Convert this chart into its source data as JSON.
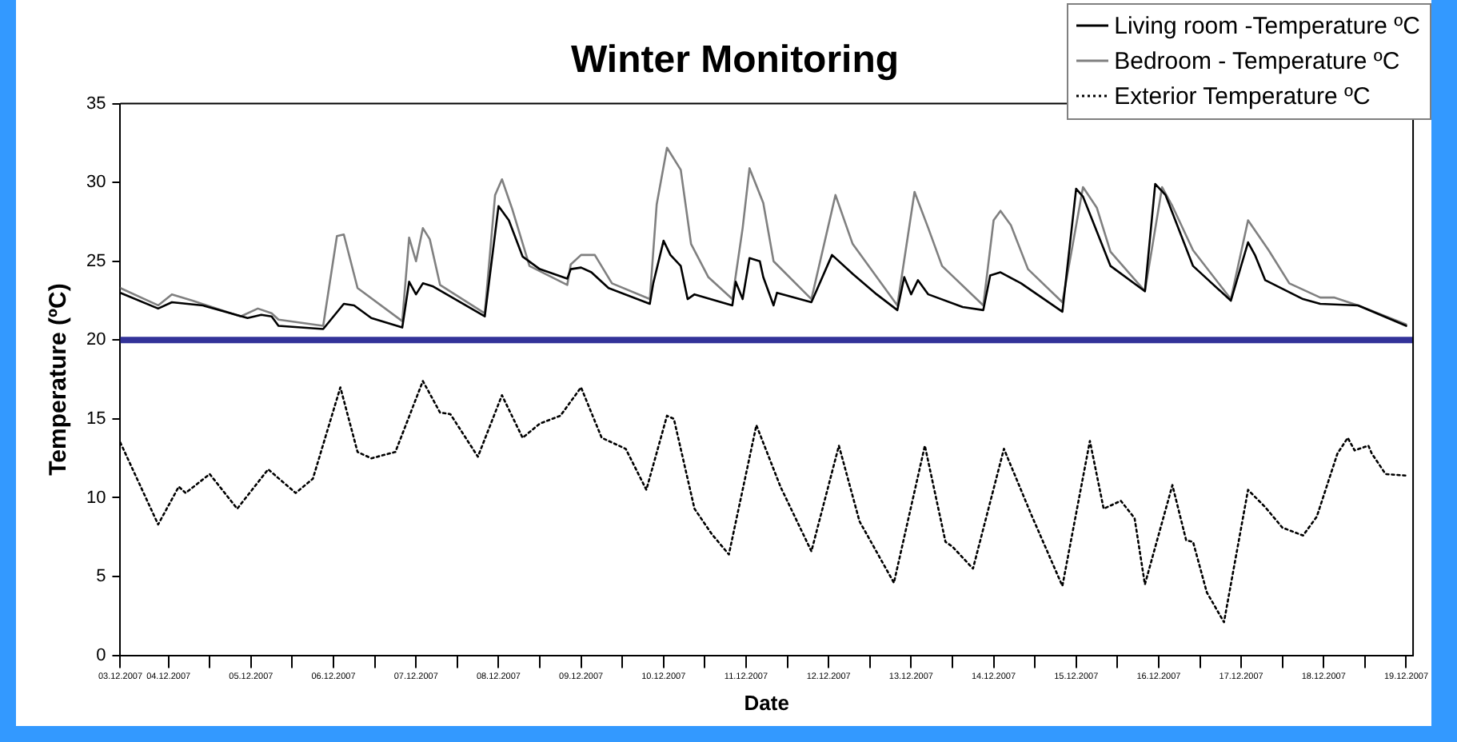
{
  "chart_data": {
    "type": "line",
    "title": "Winter Monitoring",
    "xlabel": "Date",
    "ylabel": "Temperature (ºC)",
    "xlim": [
      "2007-12-03T22:00",
      "2007-12-19T14:00"
    ],
    "xticks": [
      {
        "value": "2007-12-03T22:00",
        "label": "03.12.2007"
      },
      {
        "value": "2007-12-04T12:00",
        "label": "04.12.2007"
      },
      {
        "value": "2007-12-05T00:00",
        "label": null
      },
      {
        "value": "2007-12-05T12:00",
        "label": "05.12.2007"
      },
      {
        "value": "2007-12-06T00:00",
        "label": null
      },
      {
        "value": "2007-12-06T12:00",
        "label": "06.12.2007"
      },
      {
        "value": "2007-12-07T00:00",
        "label": null
      },
      {
        "value": "2007-12-07T12:00",
        "label": "07.12.2007"
      },
      {
        "value": "2007-12-08T00:00",
        "label": null
      },
      {
        "value": "2007-12-08T12:00",
        "label": "08.12.2007"
      },
      {
        "value": "2007-12-09T00:00",
        "label": null
      },
      {
        "value": "2007-12-09T12:00",
        "label": "09.12.2007"
      },
      {
        "value": "2007-12-10T00:00",
        "label": null
      },
      {
        "value": "2007-12-10T12:00",
        "label": "10.12.2007"
      },
      {
        "value": "2007-12-11T00:00",
        "label": null
      },
      {
        "value": "2007-12-11T12:00",
        "label": "11.12.2007"
      },
      {
        "value": "2007-12-12T00:00",
        "label": null
      },
      {
        "value": "2007-12-12T12:00",
        "label": "12.12.2007"
      },
      {
        "value": "2007-12-13T00:00",
        "label": null
      },
      {
        "value": "2007-12-13T12:00",
        "label": "13.12.2007"
      },
      {
        "value": "2007-12-14T00:00",
        "label": null
      },
      {
        "value": "2007-12-14T12:00",
        "label": "14.12.2007"
      },
      {
        "value": "2007-12-15T00:00",
        "label": null
      },
      {
        "value": "2007-12-15T12:00",
        "label": "15.12.2007"
      },
      {
        "value": "2007-12-16T00:00",
        "label": null
      },
      {
        "value": "2007-12-16T12:00",
        "label": "16.12.2007"
      },
      {
        "value": "2007-12-17T00:00",
        "label": null
      },
      {
        "value": "2007-12-17T12:00",
        "label": "17.12.2007"
      },
      {
        "value": "2007-12-18T00:00",
        "label": null
      },
      {
        "value": "2007-12-18T12:00",
        "label": "18.12.2007"
      },
      {
        "value": "2007-12-19T00:00",
        "label": null
      },
      {
        "value": "2007-12-19T12:00",
        "label": "19.12.2007"
      }
    ],
    "ylim": [
      0,
      35
    ],
    "yticks": [
      0,
      5,
      10,
      15,
      20,
      25,
      30,
      35
    ],
    "grid": false,
    "legend": "top right",
    "marker": "none",
    "ref_lines": [
      {
        "axis": "y",
        "value": 20,
        "color": "#333399"
      }
    ],
    "series": [
      {
        "name": "Living room -Temperature ºC",
        "color": "#000000",
        "line_style": "solid",
        "x": [
          "2007-12-03T22:00",
          "2007-12-04T09:00",
          "2007-12-04T13:00",
          "2007-12-04T22:00",
          "2007-12-05T11:00",
          "2007-12-05T15:00",
          "2007-12-05T18:00",
          "2007-12-05T20:00",
          "2007-12-06T09:00",
          "2007-12-06T15:00",
          "2007-12-06T18:00",
          "2007-12-06T23:00",
          "2007-12-07T08:00",
          "2007-12-07T10:00",
          "2007-12-07T12:00",
          "2007-12-07T14:00",
          "2007-12-07T17:00",
          "2007-12-08T08:00",
          "2007-12-08T12:00",
          "2007-12-08T15:00",
          "2007-12-08T19:00",
          "2007-12-09T00:00",
          "2007-12-09T08:00",
          "2007-12-09T09:00",
          "2007-12-09T12:00",
          "2007-12-09T15:00",
          "2007-12-09T20:00",
          "2007-12-10T08:00",
          "2007-12-10T09:00",
          "2007-12-10T12:00",
          "2007-12-10T14:00",
          "2007-12-10T17:00",
          "2007-12-10T19:00",
          "2007-12-10T21:00",
          "2007-12-11T08:00",
          "2007-12-11T09:00",
          "2007-12-11T11:00",
          "2007-12-11T13:00",
          "2007-12-11T16:00",
          "2007-12-11T17:00",
          "2007-12-11T20:00",
          "2007-12-11T21:00",
          "2007-12-12T07:00",
          "2007-12-12T13:00",
          "2007-12-12T19:00",
          "2007-12-13T02:00",
          "2007-12-13T08:00",
          "2007-12-13T10:00",
          "2007-12-13T12:00",
          "2007-12-13T14:00",
          "2007-12-13T17:00",
          "2007-12-14T03:00",
          "2007-12-14T09:00",
          "2007-12-14T11:00",
          "2007-12-14T14:00",
          "2007-12-14T20:00",
          "2007-12-15T08:00",
          "2007-12-15T12:00",
          "2007-12-15T14:00",
          "2007-12-15T22:00",
          "2007-12-16T08:00",
          "2007-12-16T11:00",
          "2007-12-16T14:00",
          "2007-12-16T22:00",
          "2007-12-17T09:00",
          "2007-12-17T14:00",
          "2007-12-17T16:00",
          "2007-12-17T19:00",
          "2007-12-18T06:00",
          "2007-12-18T11:00",
          "2007-12-18T22:00",
          "2007-12-19T12:00"
        ],
        "values": [
          23.0,
          22.0,
          22.4,
          22.2,
          21.4,
          21.6,
          21.5,
          20.9,
          20.7,
          22.3,
          22.2,
          21.4,
          20.8,
          23.7,
          22.9,
          23.6,
          23.4,
          21.5,
          28.5,
          27.6,
          25.3,
          24.5,
          23.9,
          24.5,
          24.6,
          24.3,
          23.3,
          22.3,
          23.6,
          26.3,
          25.4,
          24.7,
          22.6,
          22.9,
          22.2,
          23.7,
          22.6,
          25.2,
          25.0,
          24.0,
          22.2,
          23.0,
          22.4,
          25.4,
          24.2,
          22.9,
          21.9,
          24.0,
          22.9,
          23.8,
          22.9,
          22.1,
          21.9,
          24.1,
          24.3,
          23.6,
          21.8,
          29.6,
          29.1,
          24.7,
          23.1,
          29.9,
          29.2,
          24.7,
          22.5,
          26.2,
          25.4,
          23.8,
          22.6,
          22.3,
          22.2,
          20.9
        ]
      },
      {
        "name": "Bedroom - Temperature ºC",
        "color": "#808080",
        "line_style": "solid",
        "x": [
          "2007-12-03T22:00",
          "2007-12-04T09:00",
          "2007-12-04T13:00",
          "2007-12-04T19:00",
          "2007-12-05T09:00",
          "2007-12-05T14:00",
          "2007-12-05T18:00",
          "2007-12-05T20:00",
          "2007-12-06T09:00",
          "2007-12-06T13:00",
          "2007-12-06T15:00",
          "2007-12-06T19:00",
          "2007-12-07T08:00",
          "2007-12-07T10:00",
          "2007-12-07T12:00",
          "2007-12-07T14:00",
          "2007-12-07T16:00",
          "2007-12-07T19:00",
          "2007-12-08T08:00",
          "2007-12-08T11:00",
          "2007-12-08T13:00",
          "2007-12-08T16:00",
          "2007-12-08T21:00",
          "2007-12-09T08:00",
          "2007-12-09T09:00",
          "2007-12-09T12:00",
          "2007-12-09T16:00",
          "2007-12-09T21:00",
          "2007-12-10T08:00",
          "2007-12-10T10:00",
          "2007-12-10T13:00",
          "2007-12-10T17:00",
          "2007-12-10T20:00",
          "2007-12-11T01:00",
          "2007-12-11T08:00",
          "2007-12-11T11:00",
          "2007-12-11T13:00",
          "2007-12-11T17:00",
          "2007-12-11T20:00",
          "2007-12-12T07:00",
          "2007-12-12T14:00",
          "2007-12-12T19:00",
          "2007-12-13T08:00",
          "2007-12-13T13:00",
          "2007-12-13T17:00",
          "2007-12-13T21:00",
          "2007-12-14T09:00",
          "2007-12-14T12:00",
          "2007-12-14T14:00",
          "2007-12-14T17:00",
          "2007-12-14T22:00",
          "2007-12-15T08:00",
          "2007-12-15T14:00",
          "2007-12-15T18:00",
          "2007-12-15T22:00",
          "2007-12-16T08:00",
          "2007-12-16T13:00",
          "2007-12-16T16:00",
          "2007-12-16T22:00",
          "2007-12-17T09:00",
          "2007-12-17T14:00",
          "2007-12-17T20:00",
          "2007-12-18T02:00",
          "2007-12-18T11:00",
          "2007-12-18T15:00",
          "2007-12-18T22:00",
          "2007-12-19T12:00"
        ],
        "values": [
          23.3,
          22.2,
          22.9,
          22.5,
          21.5,
          22.0,
          21.7,
          21.3,
          20.9,
          26.6,
          26.7,
          23.3,
          21.2,
          26.5,
          25.0,
          27.1,
          26.4,
          23.5,
          21.7,
          29.2,
          30.2,
          28.3,
          24.7,
          23.5,
          24.8,
          25.4,
          25.4,
          23.6,
          22.6,
          28.6,
          32.2,
          30.8,
          26.1,
          24.0,
          22.6,
          27.1,
          30.9,
          28.7,
          25.0,
          22.6,
          29.2,
          26.1,
          22.2,
          29.4,
          27.1,
          24.7,
          22.2,
          27.6,
          28.2,
          27.3,
          24.5,
          22.4,
          29.7,
          28.4,
          25.6,
          23.1,
          29.7,
          28.5,
          25.7,
          22.6,
          27.6,
          25.7,
          23.6,
          22.7,
          22.7,
          22.2,
          21.0
        ]
      },
      {
        "name": "Exterior Temperature ºC",
        "color": "#000000",
        "line_style": "dotted",
        "x": [
          "2007-12-03T22:00",
          "2007-12-04T09:00",
          "2007-12-04T15:00",
          "2007-12-04T17:00",
          "2007-12-05T00:00",
          "2007-12-05T08:00",
          "2007-12-05T17:00",
          "2007-12-06T01:00",
          "2007-12-06T06:00",
          "2007-12-06T14:00",
          "2007-12-06T19:00",
          "2007-12-06T23:00",
          "2007-12-07T06:00",
          "2007-12-07T14:00",
          "2007-12-07T19:00",
          "2007-12-07T22:00",
          "2007-12-08T06:00",
          "2007-12-08T13:00",
          "2007-12-08T19:00",
          "2007-12-09T00:00",
          "2007-12-09T06:00",
          "2007-12-09T12:00",
          "2007-12-09T18:00",
          "2007-12-10T01:00",
          "2007-12-10T07:00",
          "2007-12-10T13:00",
          "2007-12-10T15:00",
          "2007-12-10T21:00",
          "2007-12-11T02:00",
          "2007-12-11T07:00",
          "2007-12-11T15:00",
          "2007-12-11T22:00",
          "2007-12-12T07:00",
          "2007-12-12T15:00",
          "2007-12-12T21:00",
          "2007-12-13T07:00",
          "2007-12-13T16:00",
          "2007-12-13T22:00",
          "2007-12-14T00:00",
          "2007-12-14T06:00",
          "2007-12-14T15:00",
          "2007-12-14T23:00",
          "2007-12-15T08:00",
          "2007-12-15T16:00",
          "2007-12-15T20:00",
          "2007-12-16T01:00",
          "2007-12-16T05:00",
          "2007-12-16T08:00",
          "2007-12-16T16:00",
          "2007-12-16T20:00",
          "2007-12-16T22:00",
          "2007-12-17T02:00",
          "2007-12-17T07:00",
          "2007-12-17T14:00",
          "2007-12-17T19:00",
          "2007-12-18T00:00",
          "2007-12-18T06:00",
          "2007-12-18T10:00",
          "2007-12-18T16:00",
          "2007-12-18T19:00",
          "2007-12-18T21:00",
          "2007-12-19T01:00",
          "2007-12-19T02:00",
          "2007-12-19T06:00",
          "2007-12-19T12:00"
        ],
        "values": [
          13.5,
          8.3,
          10.7,
          10.3,
          11.5,
          9.3,
          11.8,
          10.3,
          11.2,
          17.0,
          12.9,
          12.5,
          12.9,
          17.4,
          15.4,
          15.3,
          12.6,
          16.5,
          13.8,
          14.7,
          15.2,
          17.0,
          13.8,
          13.1,
          10.5,
          15.2,
          15.0,
          9.3,
          7.7,
          6.4,
          14.6,
          10.7,
          6.6,
          13.3,
          8.5,
          4.6,
          13.3,
          7.2,
          6.9,
          5.5,
          13.1,
          8.9,
          4.4,
          13.6,
          9.3,
          9.8,
          8.7,
          4.5,
          10.8,
          7.3,
          7.2,
          4.0,
          2.1,
          10.5,
          9.4,
          8.1,
          7.6,
          8.8,
          12.8,
          13.8,
          13.0,
          13.3,
          12.8,
          11.5,
          11.4
        ]
      }
    ]
  }
}
